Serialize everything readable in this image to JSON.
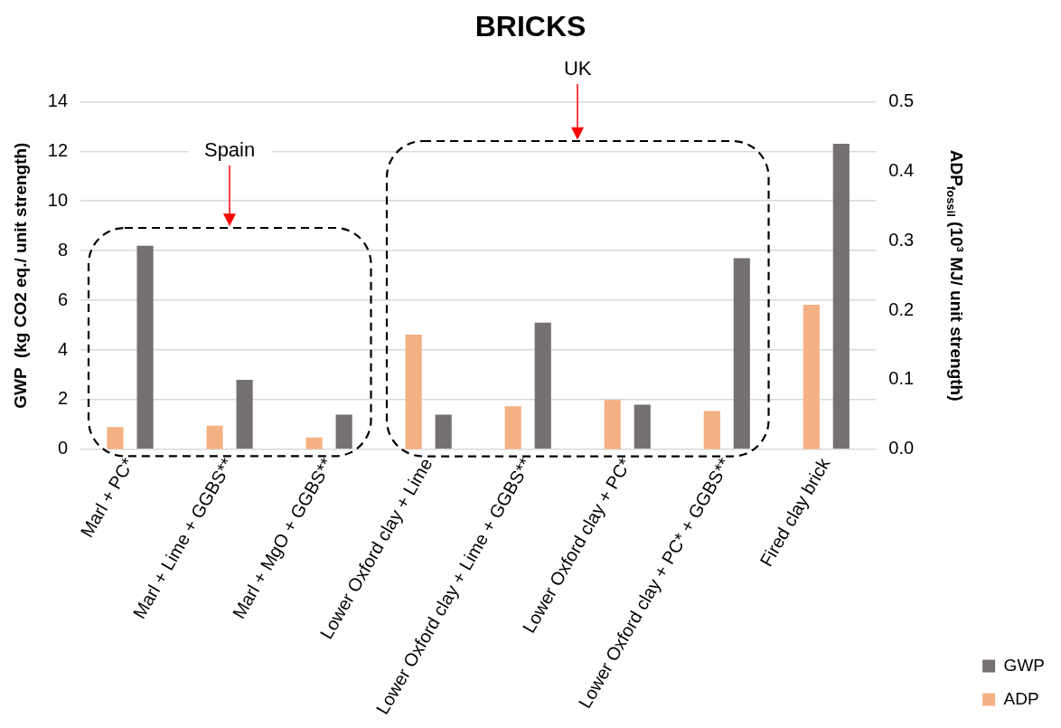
{
  "chart_data": {
    "type": "bar",
    "title": "BRICKS",
    "ylabel": "GWP  (kg CO2 eq./ unit strength)",
    "y2label": "ADP$_{fossil}$ (10³ MJ/ unit strength)",
    "categories": [
      "Marl + PC*",
      "Marl + Lime + GGBS**",
      "Marl + MgO + GGBS**",
      "Lower Oxford clay + Lime",
      "Lower Oxford clay + Lime + GGBS**",
      "Lower Oxford clay + PC*",
      "Lower Oxford clay + PC* + GGBS**",
      "Fired clay brick"
    ],
    "series": [
      {
        "name": "ADP",
        "color": "#f4b183",
        "axis": "y2",
        "values": [
          0.032,
          0.034,
          0.017,
          0.165,
          0.062,
          0.071,
          0.055,
          0.208
        ]
      },
      {
        "name": "GWP",
        "color": "#767171",
        "values": [
          8.2,
          2.8,
          1.4,
          1.4,
          5.1,
          1.8,
          7.7,
          12.3
        ]
      }
    ],
    "ylim": [
      0,
      14
    ],
    "yticks": [
      0,
      2,
      4,
      6,
      8,
      10,
      12,
      14
    ],
    "y2lim": [
      0,
      0.5
    ],
    "y2ticks": [
      {
        "value": 0,
        "label": "0.0"
      },
      {
        "value": 0.1,
        "label": "0.1"
      },
      {
        "value": 0.2,
        "label": "0.2"
      },
      {
        "value": 0.3,
        "label": "0.3"
      },
      {
        "value": 0.4,
        "label": "0.4"
      },
      {
        "value": 0.5,
        "label": "0.5"
      }
    ],
    "grid": "y",
    "legend": "bottom right",
    "annotations": [
      "Spain",
      "UK"
    ]
  }
}
